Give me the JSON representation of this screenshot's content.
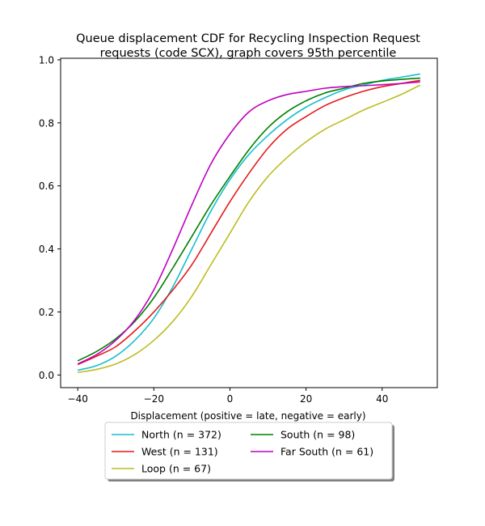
{
  "chart_data": {
    "type": "line",
    "title_line1": "Queue displacement CDF for Recycling Inspection Request",
    "title_line2": "requests (code SCX), graph covers 95th percentile",
    "xlabel": "Displacement (positive = late, negative = early)",
    "ylabel": "",
    "xlim": [
      -44.5,
      54.5
    ],
    "ylim": [
      -0.04,
      1.005
    ],
    "x_ticks": [
      -40,
      -20,
      0,
      20,
      40
    ],
    "y_ticks": [
      0.0,
      0.2,
      0.4,
      0.6,
      0.8,
      1.0
    ],
    "x_tick_labels": [
      "−40",
      "−20",
      "0",
      "20",
      "40"
    ],
    "y_tick_labels": [
      "0.0",
      "0.2",
      "0.4",
      "0.6",
      "0.8",
      "1.0"
    ],
    "grid": false,
    "legend_placement": "below-center",
    "series": [
      {
        "name": "North (n = 372)",
        "color": "#17becf",
        "x": [
          -40,
          -35,
          -30,
          -25,
          -20,
          -15,
          -10,
          -5,
          0,
          5,
          10,
          15,
          20,
          25,
          30,
          35,
          40,
          45,
          50
        ],
        "y": [
          0.015,
          0.03,
          0.06,
          0.11,
          0.18,
          0.28,
          0.4,
          0.52,
          0.62,
          0.7,
          0.76,
          0.81,
          0.85,
          0.88,
          0.905,
          0.92,
          0.935,
          0.945,
          0.955
        ]
      },
      {
        "name": "West (n = 131)",
        "color": "#e41a1c",
        "x": [
          -40,
          -35,
          -30,
          -25,
          -20,
          -15,
          -10,
          -5,
          0,
          5,
          10,
          15,
          20,
          25,
          30,
          35,
          40,
          45,
          50
        ],
        "y": [
          0.033,
          0.06,
          0.09,
          0.14,
          0.2,
          0.27,
          0.35,
          0.45,
          0.55,
          0.64,
          0.72,
          0.78,
          0.82,
          0.855,
          0.88,
          0.9,
          0.915,
          0.925,
          0.935
        ]
      },
      {
        "name": "Loop (n = 67)",
        "color": "#bcbd22",
        "x": [
          -40,
          -35,
          -30,
          -25,
          -20,
          -15,
          -10,
          -5,
          0,
          5,
          10,
          15,
          20,
          25,
          30,
          35,
          40,
          45,
          50
        ],
        "y": [
          0.008,
          0.018,
          0.035,
          0.065,
          0.11,
          0.17,
          0.25,
          0.35,
          0.45,
          0.55,
          0.63,
          0.69,
          0.74,
          0.78,
          0.81,
          0.84,
          0.865,
          0.89,
          0.92
        ]
      },
      {
        "name": "South (n = 98)",
        "color": "#008000",
        "x": [
          -40,
          -35,
          -30,
          -25,
          -20,
          -15,
          -10,
          -5,
          0,
          5,
          10,
          15,
          20,
          25,
          30,
          35,
          40,
          45,
          50
        ],
        "y": [
          0.045,
          0.075,
          0.115,
          0.17,
          0.245,
          0.34,
          0.44,
          0.54,
          0.63,
          0.715,
          0.785,
          0.835,
          0.87,
          0.895,
          0.91,
          0.925,
          0.933,
          0.938,
          0.942
        ]
      },
      {
        "name": "Far South (n = 61)",
        "color": "#bf00bf",
        "x": [
          -40,
          -35,
          -30,
          -25,
          -20,
          -15,
          -10,
          -5,
          0,
          5,
          10,
          15,
          20,
          25,
          30,
          35,
          40,
          45,
          50
        ],
        "y": [
          0.035,
          0.065,
          0.11,
          0.175,
          0.27,
          0.4,
          0.54,
          0.67,
          0.765,
          0.835,
          0.87,
          0.89,
          0.9,
          0.91,
          0.915,
          0.918,
          0.921,
          0.925,
          0.93
        ]
      }
    ]
  }
}
